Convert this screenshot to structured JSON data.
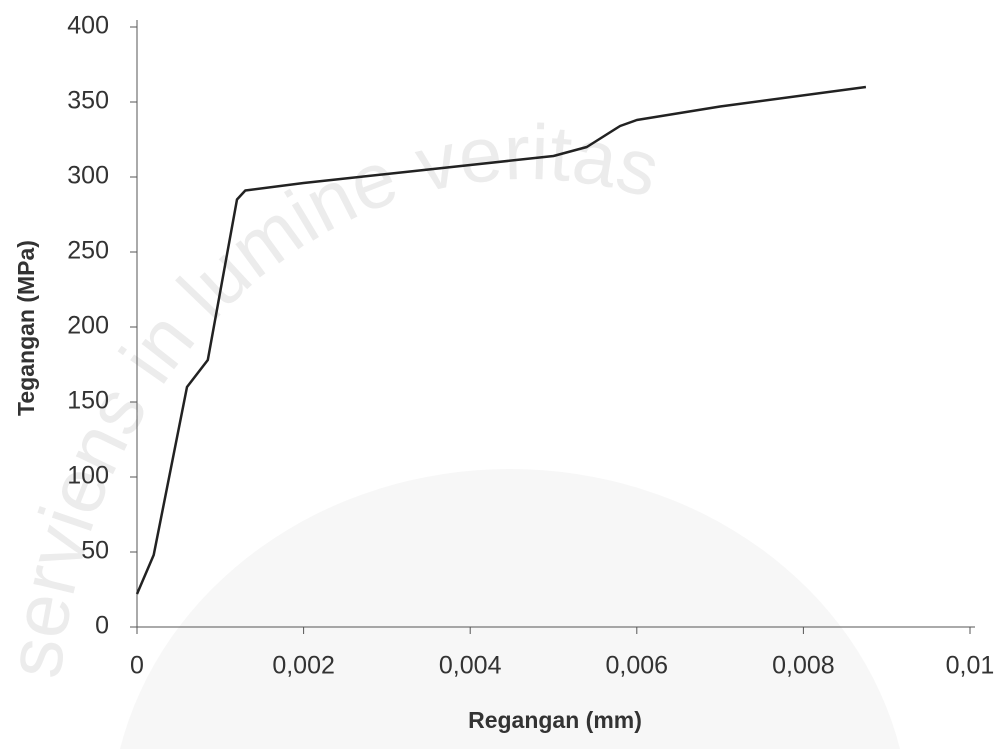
{
  "chart_data": {
    "type": "line",
    "watermark": "serviens in lumine veritas",
    "x_label": "Regangan (mm)",
    "y_label": "Tegangan (MPa)",
    "x": [
      0,
      0.0002,
      0.0006,
      0.00085,
      0.0012,
      0.0013,
      0.002,
      0.003,
      0.004,
      0.005,
      0.0054,
      0.0058,
      0.006,
      0.007,
      0.00875
    ],
    "series": [
      {
        "color": "#222222",
        "values": [
          22,
          48,
          160,
          178,
          285,
          291,
          296,
          302,
          308,
          314,
          320,
          334,
          338,
          347,
          360
        ]
      }
    ],
    "xlim": [
      0,
      0.01
    ],
    "xticks": [
      0,
      {
        "value": 0.002,
        "label": "0,002"
      },
      {
        "value": 0.004,
        "label": "0,004"
      },
      {
        "value": 0.006,
        "label": "0,006"
      },
      {
        "value": 0.008,
        "label": "0,008"
      },
      {
        "value": 0.01,
        "label": "0,01"
      }
    ],
    "ylim": [
      0,
      400
    ],
    "yticks": [
      0,
      50,
      100,
      150,
      200,
      250,
      300,
      350,
      400
    ],
    "grid": false
  }
}
